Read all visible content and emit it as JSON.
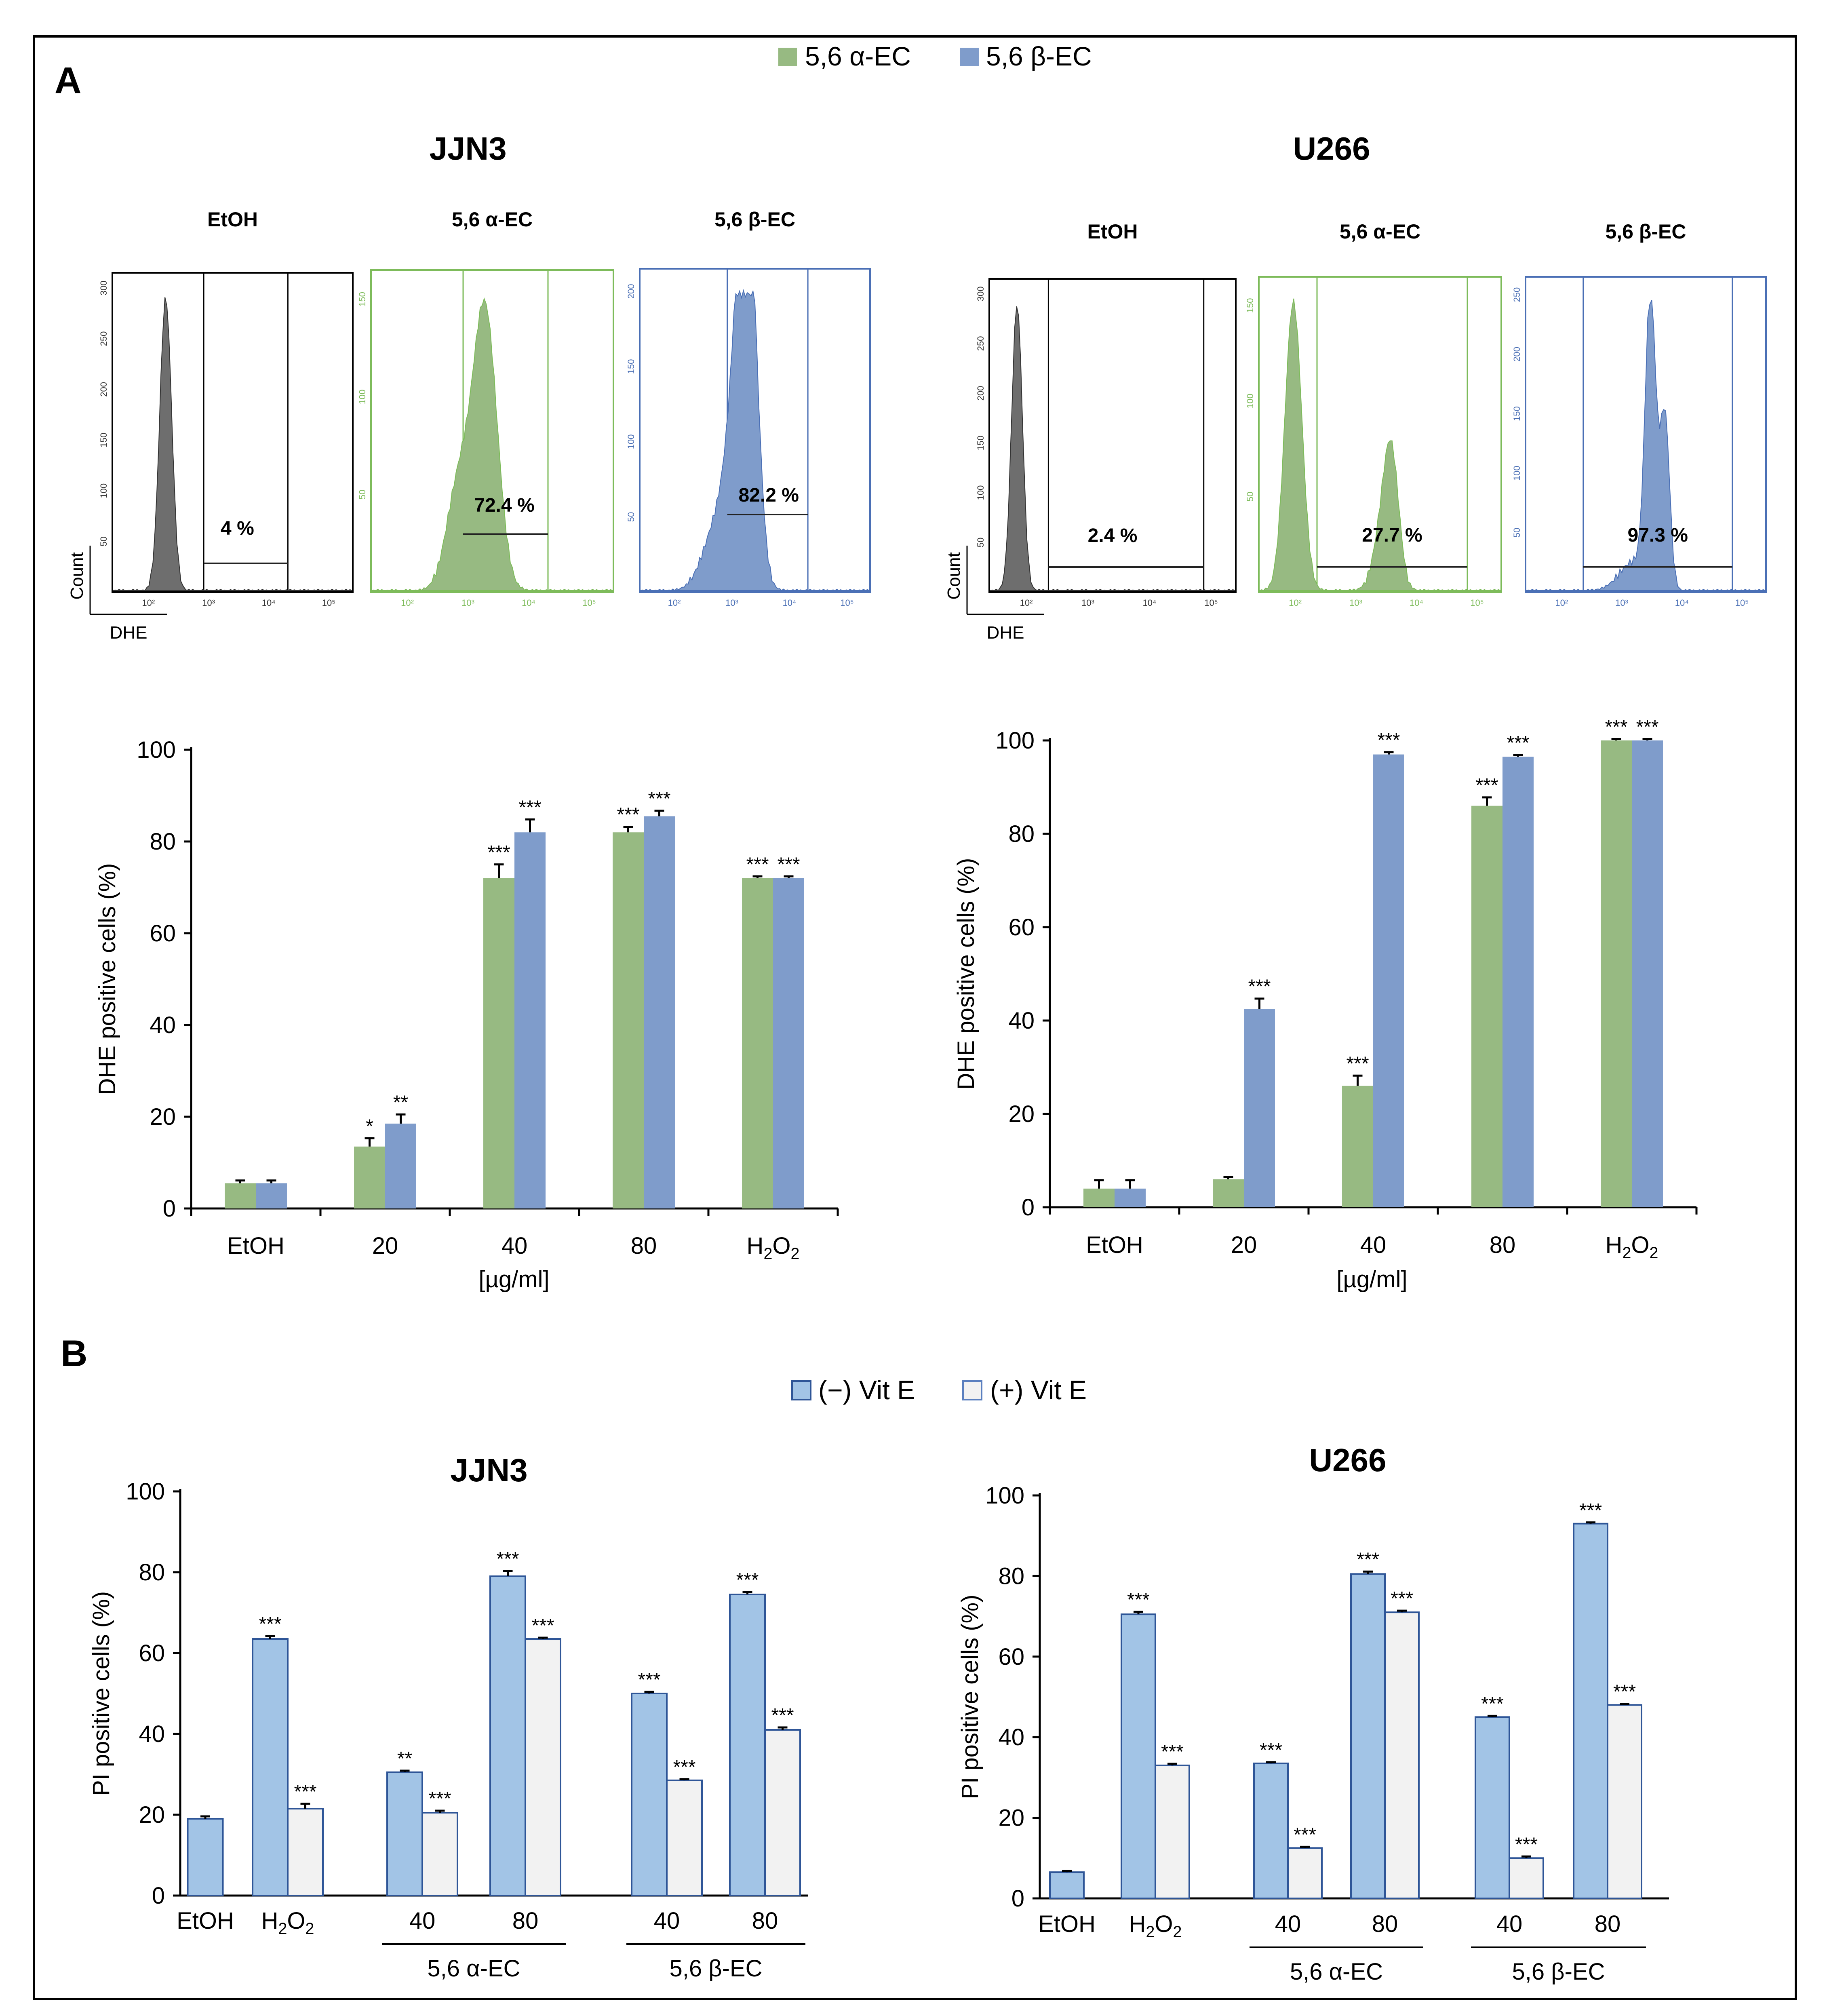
{
  "colors": {
    "alpha": "#97ba82",
    "beta": "#7f9ccb",
    "etoh_hist": "#6e6e6e",
    "alpha_frame": "#7dbb5a",
    "beta_frame": "#4a6fb5",
    "vit_minus": "#a2c4e6",
    "vit_plus": "#f2f2f2",
    "bar_edge": "#2e5597"
  },
  "panel_a": {
    "label": "A",
    "legend": [
      "5,6 α-EC",
      "5,6 β-EC"
    ],
    "cell_lines": [
      "JJN3",
      "U266"
    ],
    "flow": {
      "subtitles": [
        "EtOH",
        "5,6 α-EC",
        "5,6 β-EC"
      ],
      "count_label": "Count",
      "dhe_label": "DHE",
      "jjn3_percents": [
        "4 %",
        "72.4 %",
        "82.2 %"
      ],
      "u266_percents": [
        "2.4 %",
        "27.7 %",
        "97.3 %"
      ],
      "jjn3_yticks": [
        [
          "50",
          "100",
          "150",
          "200",
          "250",
          "300"
        ],
        [
          "50",
          "100",
          "150"
        ],
        [
          "50",
          "100",
          "150",
          "200"
        ]
      ],
      "u266_yticks": [
        [
          "50",
          "100",
          "150",
          "200",
          "250",
          "300"
        ],
        [
          "50",
          "100",
          "150"
        ],
        [
          "50",
          "100",
          "150",
          "200",
          "250"
        ]
      ]
    }
  },
  "panel_b": {
    "label": "B",
    "legend": [
      "(−) Vit E",
      "(+) Vit E"
    ],
    "cell_lines": [
      "JJN3",
      "U266"
    ]
  },
  "chart_data": [
    {
      "type": "bar",
      "title": "JJN3",
      "ylabel": "DHE positive cells (%)",
      "xlabel": "[µg/ml]",
      "ylim": [
        0,
        100
      ],
      "yticks": [
        "0",
        "20",
        "40",
        "60",
        "80",
        "100"
      ],
      "categories": [
        "EtOH",
        "20",
        "40",
        "80",
        "H2O2"
      ],
      "series": [
        {
          "name": "5,6 α-EC",
          "values": [
            5.5,
            13.5,
            72,
            82,
            72
          ],
          "errors": [
            0.6,
            1.8,
            3,
            1.2,
            0.4
          ],
          "sig": [
            "",
            "*",
            "***",
            "***",
            "***"
          ]
        },
        {
          "name": "5,6 β-EC",
          "values": [
            5.5,
            18.5,
            82,
            85.5,
            72
          ],
          "errors": [
            0.6,
            2,
            2.8,
            1.2,
            0.4
          ],
          "sig": [
            "",
            "**",
            "***",
            "***",
            "***"
          ]
        }
      ]
    },
    {
      "type": "bar",
      "title": "U266",
      "ylabel": "DHE positive cells (%)",
      "xlabel": "[µg/ml]",
      "ylim": [
        0,
        100
      ],
      "yticks": [
        "0",
        "20",
        "40",
        "60",
        "80",
        "100"
      ],
      "categories": [
        "EtOH",
        "20",
        "40",
        "80",
        "H2O2"
      ],
      "series": [
        {
          "name": "5,6 α-EC",
          "values": [
            4,
            6,
            26,
            86,
            100
          ],
          "errors": [
            1.8,
            0.5,
            2.2,
            1.8,
            0.3
          ],
          "sig": [
            "",
            "",
            "***",
            "***",
            "***"
          ]
        },
        {
          "name": "5,6 β-EC",
          "values": [
            4,
            42.5,
            97,
            96.5,
            100
          ],
          "errors": [
            1.8,
            2.2,
            0.5,
            0.4,
            0.3
          ],
          "sig": [
            "",
            "***",
            "***",
            "***",
            "***"
          ]
        }
      ]
    },
    {
      "type": "bar",
      "title": "JJN3",
      "ylabel": "PI positive cells (%)",
      "ylim": [
        0,
        100
      ],
      "yticks": [
        "0",
        "20",
        "40",
        "60",
        "80",
        "100"
      ],
      "categories": [
        "EtOH",
        "H2O2",
        "40",
        "80",
        "40",
        "80"
      ],
      "groups": [
        {
          "label": "5,6 α-EC",
          "categories": [
            2,
            3
          ]
        },
        {
          "label": "5,6 β-EC",
          "categories": [
            4,
            5
          ]
        }
      ],
      "series": [
        {
          "name": "(−) Vit E",
          "values": [
            19,
            63.5,
            30.5,
            79,
            50,
            74.5
          ],
          "errors": [
            0.6,
            0.7,
            0.4,
            1.3,
            0.4,
            0.6
          ],
          "sig": [
            "",
            "***",
            "**",
            "***",
            "***",
            "***"
          ]
        },
        {
          "name": "(+) Vit E",
          "values": [
            null,
            21.5,
            20.5,
            63.5,
            28.5,
            41
          ],
          "errors": [
            null,
            1.2,
            0.5,
            0.3,
            0.3,
            0.6
          ],
          "sig": [
            "",
            "***",
            "***",
            "***",
            "***",
            "***"
          ]
        }
      ]
    },
    {
      "type": "bar",
      "title": "U266",
      "ylabel": "PI positive cells (%)",
      "ylim": [
        0,
        100
      ],
      "yticks": [
        "0",
        "20",
        "40",
        "60",
        "80",
        "100"
      ],
      "categories": [
        "EtOH",
        "H2O2",
        "40",
        "80",
        "40",
        "80"
      ],
      "groups": [
        {
          "label": "5,6 α-EC",
          "categories": [
            2,
            3
          ]
        },
        {
          "label": "5,6 β-EC",
          "categories": [
            4,
            5
          ]
        }
      ],
      "series": [
        {
          "name": "(−) Vit E",
          "values": [
            6.5,
            70.5,
            33.5,
            80.5,
            45,
            93
          ],
          "errors": [
            0.3,
            0.6,
            0.3,
            0.6,
            0.3,
            0.3
          ],
          "sig": [
            "",
            "***",
            "***",
            "***",
            "***",
            "***"
          ]
        },
        {
          "name": "(+) Vit E",
          "values": [
            null,
            33,
            12.5,
            71,
            10,
            48
          ],
          "errors": [
            null,
            0.4,
            0.3,
            0.4,
            0.4,
            0.3
          ],
          "sig": [
            "",
            "***",
            "***",
            "***",
            "***",
            "***"
          ]
        }
      ]
    }
  ]
}
